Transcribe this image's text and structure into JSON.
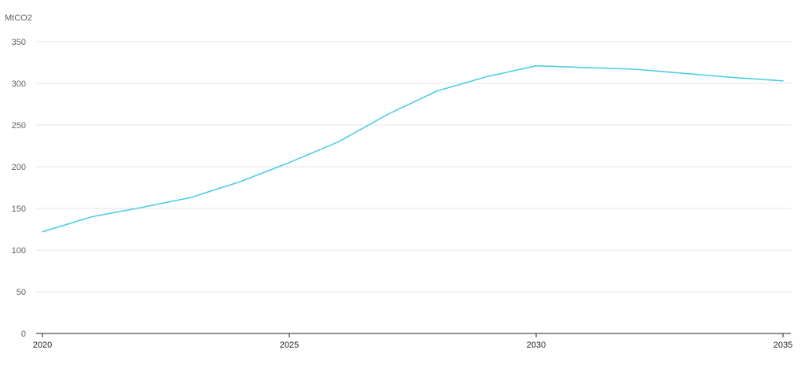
{
  "chart_data": {
    "type": "line",
    "title": "",
    "xlabel": "",
    "ylabel": "MtCO2",
    "xlim": [
      2020,
      2035
    ],
    "ylim": [
      0,
      350
    ],
    "y_ticks": [
      0,
      50,
      100,
      150,
      200,
      250,
      300,
      350
    ],
    "x_ticks": [
      2020,
      2025,
      2030,
      2035
    ],
    "grid": true,
    "legend": "none",
    "series": [
      {
        "color": "#4dcde6",
        "x": [
          2020,
          2021,
          2022,
          2023,
          2024,
          2025,
          2026,
          2027,
          2028,
          2029,
          2030,
          2031,
          2032,
          2033,
          2034,
          2035
        ],
        "values": [
          122,
          140,
          151,
          163,
          182,
          205,
          230,
          263,
          291,
          308,
          321,
          319,
          317,
          312,
          307,
          303
        ]
      }
    ]
  }
}
